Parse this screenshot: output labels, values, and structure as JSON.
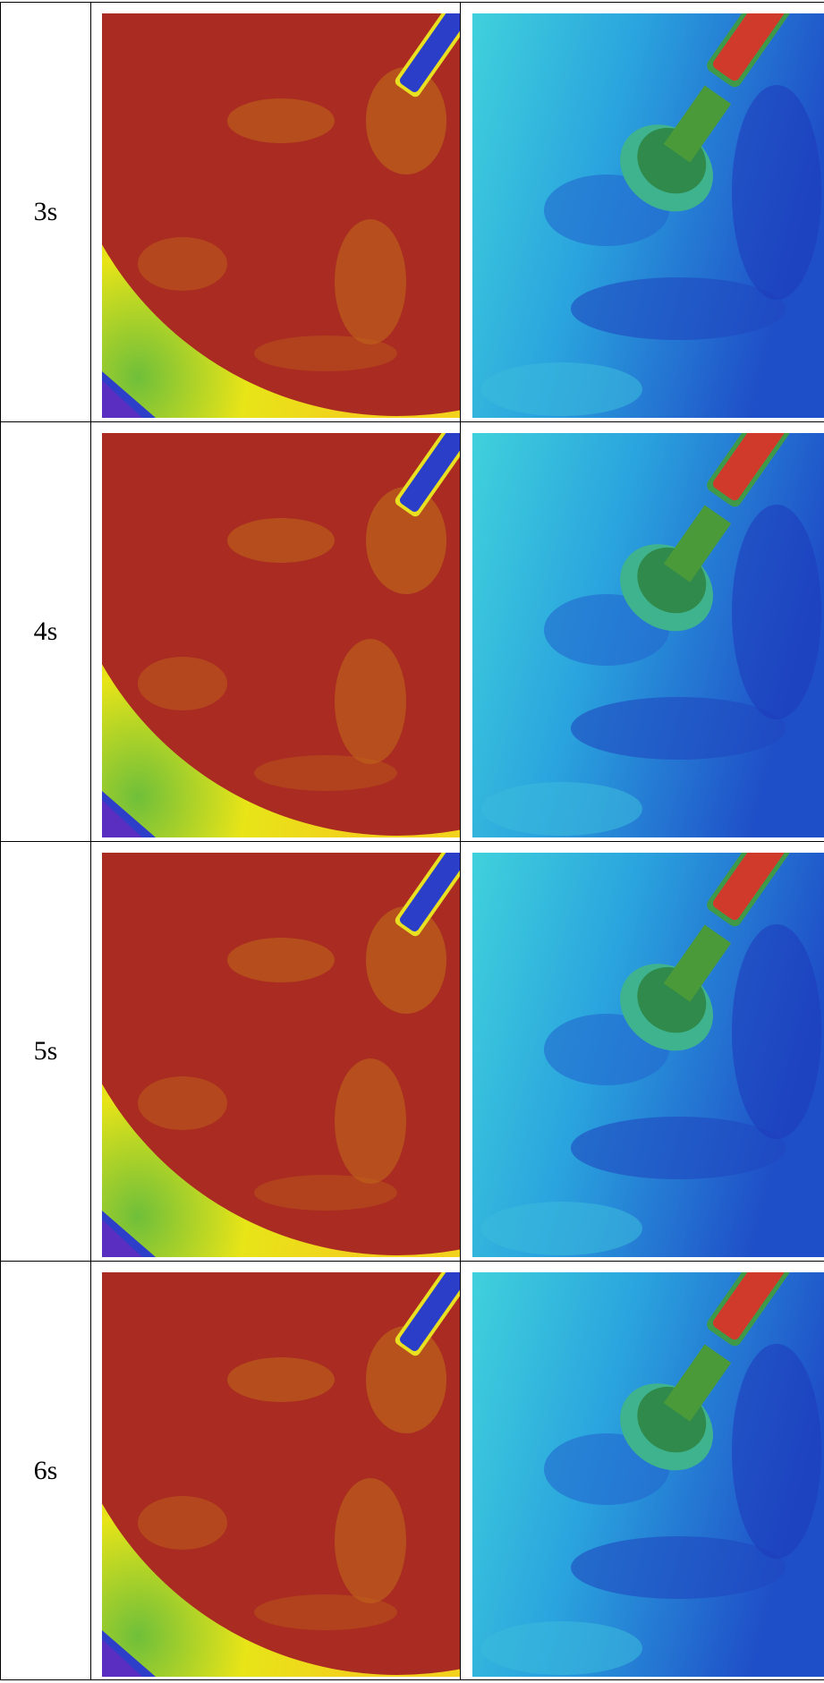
{
  "table": {
    "rows": [
      {
        "label": "3s"
      },
      {
        "label": "4s"
      },
      {
        "label": "5s"
      },
      {
        "label": "6s"
      }
    ]
  }
}
